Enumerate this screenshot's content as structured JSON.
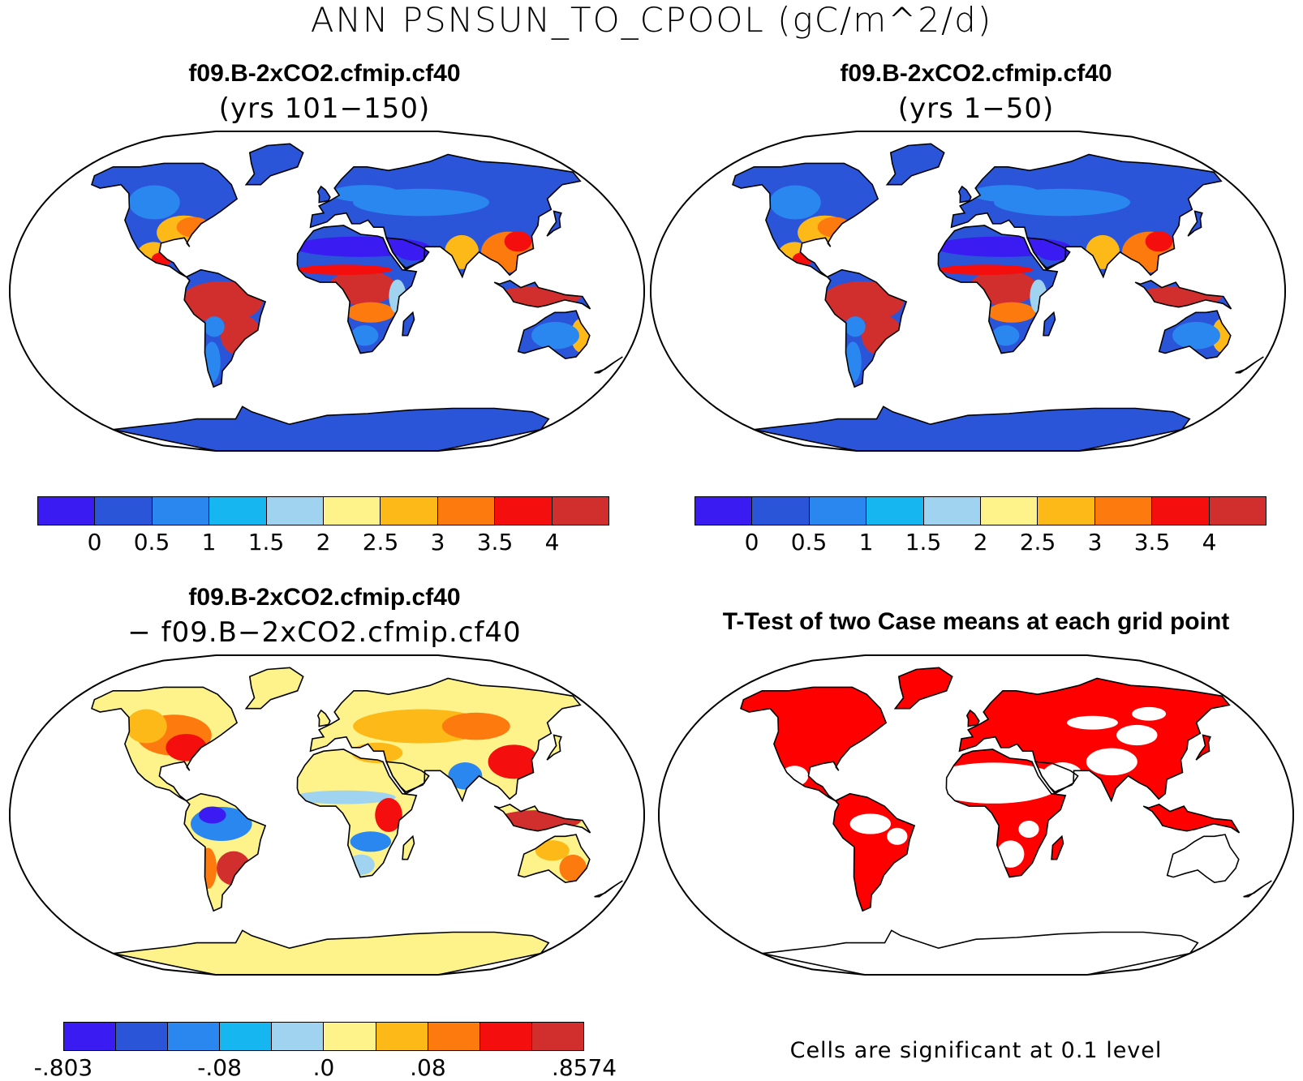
{
  "title": "ANN PSNSUN_TO_CPOOL (gC/m^2/d)",
  "panels": [
    {
      "title": "f09.B-2xCO2.cfmip.cf40",
      "subtitle": "(yrs 101−150)"
    },
    {
      "title": "f09.B-2xCO2.cfmip.cf40",
      "subtitle": "(yrs 1−50)"
    },
    {
      "title": "f09.B-2xCO2.cfmip.cf40",
      "subtitle": "− f09.B−2xCO2.cfmip.cf40"
    },
    {
      "title": "T-Test of two Case means at each grid point"
    }
  ],
  "colorbar_case": {
    "colors": [
      "#3a1cf2",
      "#2b55d9",
      "#2b87f0",
      "#16b7f0",
      "#9fd3f0",
      "#fdf38a",
      "#fcb917",
      "#fc7a0e",
      "#f40e0e",
      "#d12e2e"
    ],
    "labels": [
      "0",
      "0.5",
      "1",
      "1.5",
      "2",
      "2.5",
      "3",
      "3.5",
      "4"
    ]
  },
  "colorbar_diff": {
    "colors": [
      "#3a1cf2",
      "#2b55d9",
      "#2b87f0",
      "#16b7f0",
      "#9fd3f0",
      "#fdf38a",
      "#fcb917",
      "#fc7a0e",
      "#f40e0e",
      "#d12e2e"
    ],
    "labels": [
      "-.803",
      "-.08",
      ".0",
      ".08",
      ".8574"
    ]
  },
  "ttest_note": "Cells are significant at 0.1 level",
  "map_colors": {
    "ocean": "#ffffff",
    "ttest_significant": "#ff0000"
  }
}
